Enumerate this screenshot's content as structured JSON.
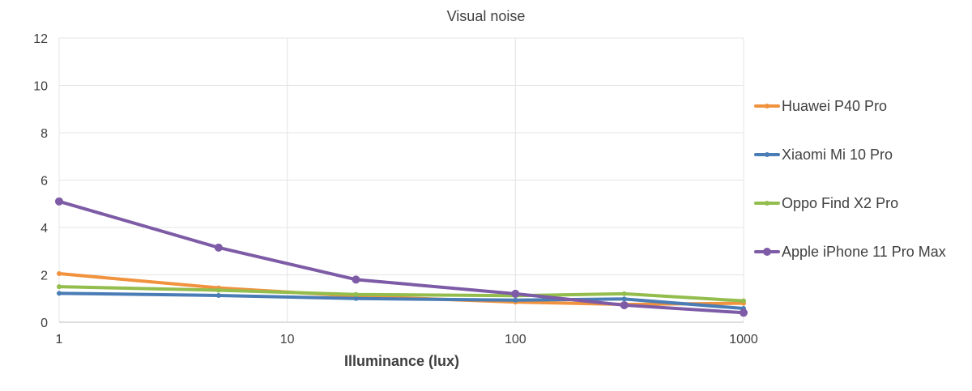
{
  "chart_data": {
    "type": "line",
    "title": "Visual noise",
    "xlabel": "Illuminance (lux)",
    "ylabel": "",
    "x_scale": "log",
    "xlim": [
      1,
      1000
    ],
    "ylim": [
      0,
      12
    ],
    "x_ticks": [
      "1",
      "10",
      "100",
      "1000"
    ],
    "y_ticks": [
      "0",
      "2",
      "4",
      "6",
      "8",
      "10",
      "12"
    ],
    "grid": true,
    "legend_position": "right",
    "x": [
      1,
      5,
      20,
      100,
      300,
      1000
    ],
    "series": [
      {
        "name": "Huawei P40 Pro",
        "color": "#f0923e",
        "marker": "small",
        "values": [
          2.05,
          1.45,
          1.1,
          0.85,
          0.75,
          0.8
        ]
      },
      {
        "name": "Xiaomi Mi 10 Pro",
        "color": "#4a7cb5",
        "marker": "small",
        "values": [
          1.22,
          1.13,
          1.0,
          0.93,
          0.98,
          0.58
        ]
      },
      {
        "name": "Oppo Find X2 Pro",
        "color": "#93bd4d",
        "marker": "small",
        "values": [
          1.5,
          1.35,
          1.17,
          1.12,
          1.2,
          0.9
        ]
      },
      {
        "name": "Apple iPhone 11 Pro Max",
        "color": "#7d5ba6",
        "marker": "large",
        "values": [
          5.1,
          3.15,
          1.8,
          1.2,
          0.72,
          0.4
        ]
      }
    ]
  }
}
